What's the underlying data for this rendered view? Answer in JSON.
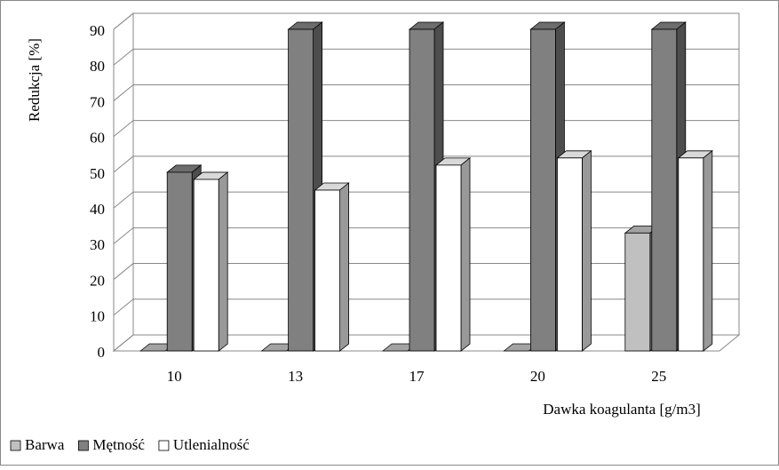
{
  "chart_data": {
    "type": "bar3d",
    "y_label": "Redukcja [%]",
    "x_label": "Dawka koagulanta [g/m3]",
    "categories": [
      "10",
      "13",
      "17",
      "20",
      "25"
    ],
    "series": [
      {
        "name": "Barwa",
        "color": "#c0c0c0",
        "values": [
          0,
          0,
          0,
          0,
          33
        ]
      },
      {
        "name": "Mętność",
        "color": "#808080",
        "values": [
          50,
          90,
          90,
          90,
          90
        ]
      },
      {
        "name": "Utlenialność",
        "color": "#ffffff",
        "values": [
          48,
          45,
          52,
          54,
          54
        ]
      }
    ],
    "ylim": [
      0,
      90
    ],
    "yticks": [
      0,
      10,
      20,
      30,
      40,
      50,
      60,
      70,
      80,
      90
    ],
    "grid": true,
    "legend": "bottom"
  }
}
